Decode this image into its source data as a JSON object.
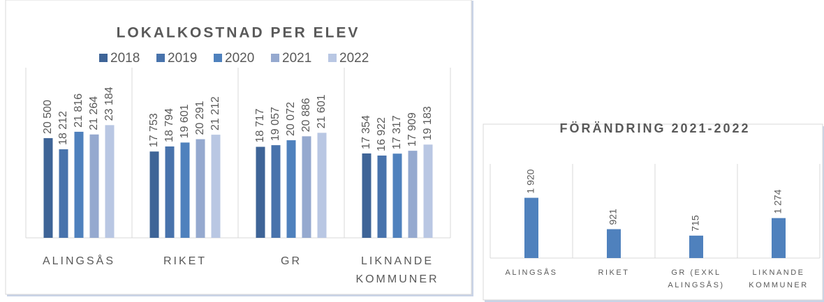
{
  "chart_data": [
    {
      "type": "bar",
      "title": "LOKALKOSTNAD PER ELEV",
      "categories": [
        "ALINGSÅS",
        "RIKET",
        "GR",
        "LIKNANDE KOMMUNER"
      ],
      "series": [
        {
          "name": "2018",
          "color": "#3e6497",
          "values": [
            20500,
            17753,
            18717,
            17354
          ],
          "value_labels": [
            "20 500",
            "17 753",
            "18 717",
            "17 354"
          ]
        },
        {
          "name": "2019",
          "color": "#4873ac",
          "values": [
            18212,
            18794,
            19057,
            16922
          ],
          "value_labels": [
            "18 212",
            "18 794",
            "19 057",
            "16 922"
          ]
        },
        {
          "name": "2020",
          "color": "#4f81bd",
          "values": [
            21816,
            19601,
            20072,
            17317
          ],
          "value_labels": [
            "21 816",
            "19 601",
            "20 072",
            "17 317"
          ]
        },
        {
          "name": "2021",
          "color": "#95a9cf",
          "values": [
            21264,
            20291,
            20886,
            17909
          ],
          "value_labels": [
            "21 264",
            "20 291",
            "20 886",
            "17 909"
          ]
        },
        {
          "name": "2022",
          "color": "#b9c7e3",
          "values": [
            23184,
            21212,
            21601,
            19183
          ],
          "value_labels": [
            "23 184",
            "21 212",
            "21 601",
            "19 183"
          ]
        }
      ],
      "ylim": [
        0,
        35000
      ]
    },
    {
      "type": "bar",
      "title": "FÖRÄNDRING 2021-2022",
      "categories": [
        "ALINGSÅS",
        "RIKET",
        "GR (EXKL ALINGSÅS)",
        "LIKNANDE KOMMUNER"
      ],
      "values": [
        1920,
        921,
        715,
        1274
      ],
      "value_labels": [
        "1 920",
        "921",
        "715",
        "1 274"
      ],
      "color": "#4f81bd",
      "ylim": [
        0,
        3000
      ]
    }
  ]
}
